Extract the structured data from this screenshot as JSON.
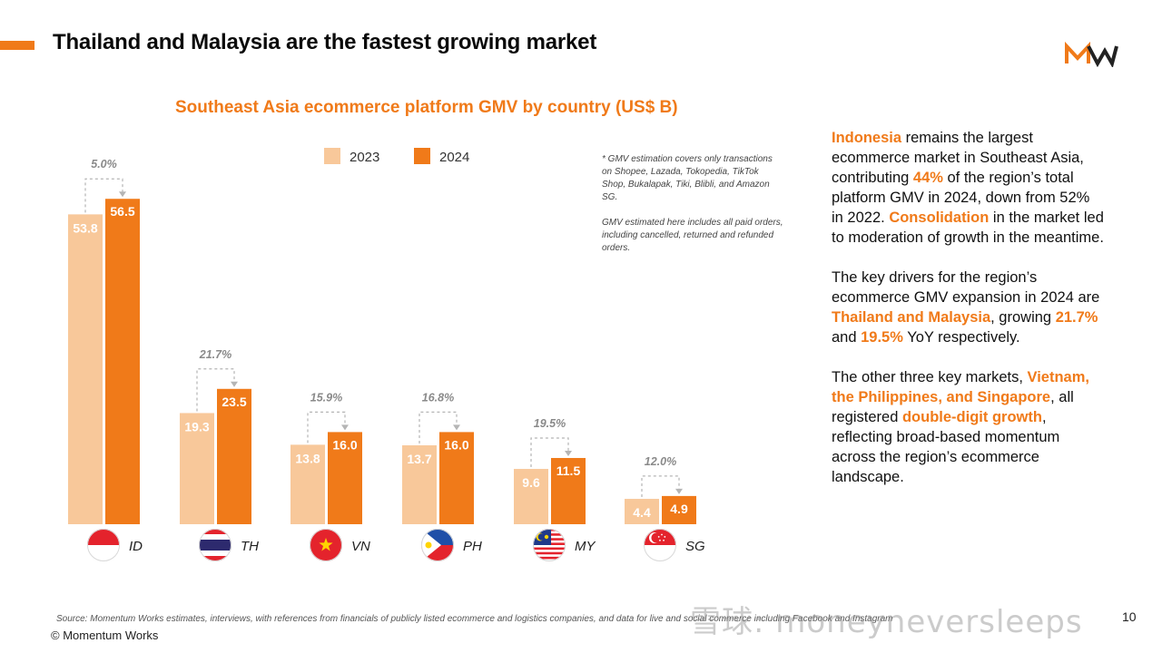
{
  "slide": {
    "title": "Thailand and Malaysia are the fastest growing market",
    "source": "Source: Momentum Works estimates, interviews, with references from financials of publicly listed ecommerce and logistics companies,  and data for live and social commerce including Facebook and Instagram",
    "copyright": "© Momentum Works",
    "page_number": "10",
    "watermark": "雪球: moneyneversleeps"
  },
  "colors": {
    "accent": "#f07a19",
    "bar_2023": "#f8c89a",
    "bar_2024": "#f07a19",
    "growth_label": "#8a8a8a"
  },
  "chart_data": {
    "type": "bar",
    "title": "Southeast Asia ecommerce platform GMV by country (US$ B)",
    "categories": [
      "ID",
      "TH",
      "VN",
      "PH",
      "MY",
      "SG"
    ],
    "series": [
      {
        "name": "2023",
        "values": [
          53.8,
          19.3,
          13.8,
          13.7,
          9.6,
          4.4
        ],
        "labels": [
          "53.8",
          "19.3",
          "13.8",
          "13.7",
          "9.6",
          "4.4"
        ]
      },
      {
        "name": "2024",
        "values": [
          56.5,
          23.5,
          16.0,
          16.0,
          11.5,
          4.9
        ],
        "labels": [
          "56.5",
          "23.5",
          "16.0",
          "16.0",
          "11.5",
          "4.9"
        ]
      }
    ],
    "growth_labels": [
      "5.0%",
      "21.7%",
      "15.9%",
      "16.8%",
      "19.5%",
      "12.0%"
    ],
    "ylim": [
      0,
      60
    ],
    "legend_placement": "top-center",
    "notes": [
      "* GMV estimation covers only transactions on Shopee, Lazada, Tokopedia, TikTok Shop, Bukalapak, Tiki, Blibli, and Amazon SG.",
      "GMV estimated here includes all paid orders, including cancelled, returned and refunded orders."
    ]
  },
  "commentary": {
    "p1": {
      "s1": "Indonesia",
      "s2": " remains the largest ecommerce market in Southeast Asia, contributing ",
      "s3": "44%",
      "s4": " of the region’s total platform GMV in 2024, down from 52% in 2022. ",
      "s5": "Consolidation",
      "s6": " in the market led to moderation of growth in the meantime."
    },
    "p2": {
      "s1": "The key drivers for the region’s ecommerce GMV expansion in 2024 are ",
      "s2": "Thailand and Malaysia",
      "s3": ", growing ",
      "s4": "21.7%",
      "s5": " and ",
      "s6": "19.5%",
      "s7": " YoY respectively."
    },
    "p3": {
      "s1": "The other three key markets, ",
      "s2": "Vietnam, the Philippines, and Singapore",
      "s3": ", all registered ",
      "s4": "double-digit growth",
      "s5": ", reflecting broad-based momentum across the region’s ecommerce landscape."
    }
  }
}
